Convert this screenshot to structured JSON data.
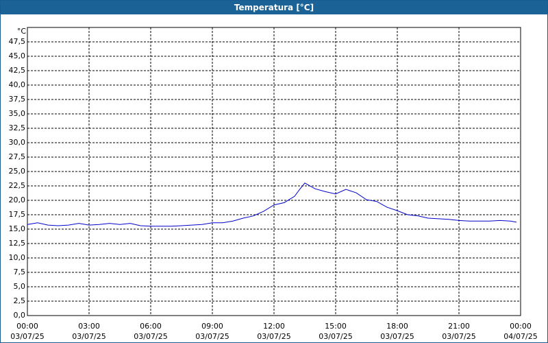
{
  "chart_data": {
    "type": "line",
    "title": "Temperatura [°C]",
    "y_unit": "°C",
    "ylim": [
      0,
      50
    ],
    "yticks": [
      {
        "value": 0,
        "label": "0,0"
      },
      {
        "value": 2.5,
        "label": "2,5"
      },
      {
        "value": 5,
        "label": "5,0"
      },
      {
        "value": 7.5,
        "label": "7,5"
      },
      {
        "value": 10,
        "label": "10,0"
      },
      {
        "value": 12.5,
        "label": "12,5"
      },
      {
        "value": 15,
        "label": "15,0"
      },
      {
        "value": 17.5,
        "label": "17,5"
      },
      {
        "value": 20,
        "label": "20,0"
      },
      {
        "value": 22.5,
        "label": "22,5"
      },
      {
        "value": 25,
        "label": "25,0"
      },
      {
        "value": 27.5,
        "label": "27,5"
      },
      {
        "value": 30,
        "label": "30,0"
      },
      {
        "value": 32.5,
        "label": "32,5"
      },
      {
        "value": 35,
        "label": "35,0"
      },
      {
        "value": 37.5,
        "label": "37,5"
      },
      {
        "value": 40,
        "label": "40,0"
      },
      {
        "value": 42.5,
        "label": "42,5"
      },
      {
        "value": 45,
        "label": "45,0"
      },
      {
        "value": 47.5,
        "label": "47,5"
      }
    ],
    "xlim": [
      0,
      24
    ],
    "xticks": [
      {
        "value": 0,
        "label": "00:00\n03/07/25"
      },
      {
        "value": 3,
        "label": "03:00\n03/07/25"
      },
      {
        "value": 6,
        "label": "06:00\n03/07/25"
      },
      {
        "value": 9,
        "label": "09:00\n03/07/25"
      },
      {
        "value": 12,
        "label": "12:00\n03/07/25"
      },
      {
        "value": 15,
        "label": "15:00\n03/07/25"
      },
      {
        "value": 18,
        "label": "18:00\n03/07/25"
      },
      {
        "value": 21,
        "label": "21:00\n03/07/25"
      },
      {
        "value": 24,
        "label": "00:00\n04/07/25"
      }
    ],
    "grid": true,
    "color": "#0000cc",
    "x": [
      0,
      0.5,
      1,
      1.5,
      2,
      2.5,
      3,
      3.5,
      4,
      4.5,
      5,
      5.5,
      6,
      6.5,
      7,
      7.5,
      8,
      8.5,
      9,
      9.5,
      10,
      10.5,
      11,
      11.5,
      12,
      12.5,
      13,
      13.25,
      13.5,
      14,
      14.5,
      15,
      15.5,
      16,
      16.5,
      17,
      17.5,
      18,
      18.5,
      19,
      19.5,
      20,
      20.5,
      21,
      21.5,
      22,
      22.5,
      23,
      23.5,
      23.8
    ],
    "values": [
      15.8,
      16.1,
      15.7,
      15.6,
      15.7,
      16.0,
      15.7,
      15.8,
      16.0,
      15.8,
      16.0,
      15.6,
      15.5,
      15.5,
      15.5,
      15.6,
      15.7,
      15.8,
      16.1,
      16.1,
      16.4,
      16.9,
      17.3,
      18.1,
      19.2,
      19.6,
      20.7,
      21.9,
      23.0,
      22.0,
      21.5,
      21.1,
      21.9,
      21.3,
      20.1,
      19.8,
      18.8,
      18.2,
      17.5,
      17.3,
      16.9,
      16.8,
      16.7,
      16.5,
      16.4,
      16.4,
      16.4,
      16.5,
      16.4,
      16.2
    ]
  }
}
